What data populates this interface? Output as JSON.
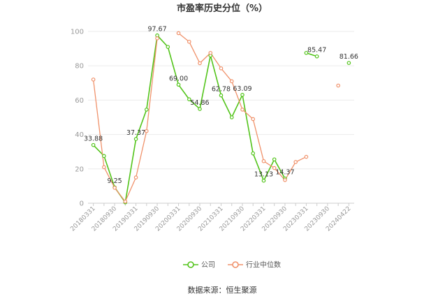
{
  "chart_data": {
    "type": "line",
    "title": "市盈率历史分位（%）",
    "ylim": [
      0,
      100
    ],
    "yticks": [
      0,
      20,
      40,
      60,
      80,
      100
    ],
    "grid": true,
    "legend_placement": "bottom-center",
    "categories": [
      "20180331",
      "20180630",
      "20180930",
      "20181231",
      "20190331",
      "20190630",
      "20190930",
      "20191231",
      "20200331",
      "20200630",
      "20200930",
      "20201231",
      "20210331",
      "20210630",
      "20210930",
      "20211231",
      "20220331",
      "20220630",
      "20220930",
      "20221231",
      "20230331",
      "20230630",
      "20230930",
      "20231231",
      "20240422"
    ],
    "xtick_labels": [
      "20180331",
      "20180930",
      "20190331",
      "20190930",
      "20200331",
      "20200930",
      "20210331",
      "20210930",
      "20220331",
      "20220930",
      "20230331",
      "20230930",
      "20240422"
    ],
    "series": [
      {
        "name": "公司",
        "color": "#52c41a",
        "values": [
          33.88,
          27.5,
          9.25,
          0.5,
          37.37,
          54.5,
          97.67,
          91.0,
          69.0,
          60.5,
          54.86,
          86.0,
          62.78,
          50.0,
          63.09,
          29.0,
          13.13,
          25.5,
          14.37,
          null,
          87.5,
          85.47,
          null,
          null,
          81.66
        ]
      },
      {
        "name": "行业中位数",
        "color": "#f0916a",
        "values": [
          72.0,
          21.0,
          9.0,
          1.0,
          15.0,
          42.0,
          96.0,
          null,
          99.0,
          94.0,
          81.5,
          87.5,
          78.5,
          71.0,
          54.5,
          49.0,
          24.5,
          20.5,
          13.5,
          24.0,
          27.0,
          null,
          null,
          68.5,
          null
        ]
      }
    ],
    "data_labels": [
      {
        "series": 0,
        "index": 0,
        "text": "33.88"
      },
      {
        "series": 0,
        "index": 2,
        "text": "9.25"
      },
      {
        "series": 0,
        "index": 4,
        "text": "37.37"
      },
      {
        "series": 0,
        "index": 6,
        "text": "97.67"
      },
      {
        "series": 0,
        "index": 8,
        "text": "69.00"
      },
      {
        "series": 0,
        "index": 10,
        "text": "54.86"
      },
      {
        "series": 0,
        "index": 12,
        "text": "62.78"
      },
      {
        "series": 0,
        "index": 14,
        "text": "63.09"
      },
      {
        "series": 0,
        "index": 16,
        "text": "13.13"
      },
      {
        "series": 0,
        "index": 18,
        "text": "14.37"
      },
      {
        "series": 0,
        "index": 21,
        "text": "85.47"
      },
      {
        "series": 0,
        "index": 24,
        "text": "81.66"
      }
    ],
    "source": "数据来源：恒生聚源"
  }
}
